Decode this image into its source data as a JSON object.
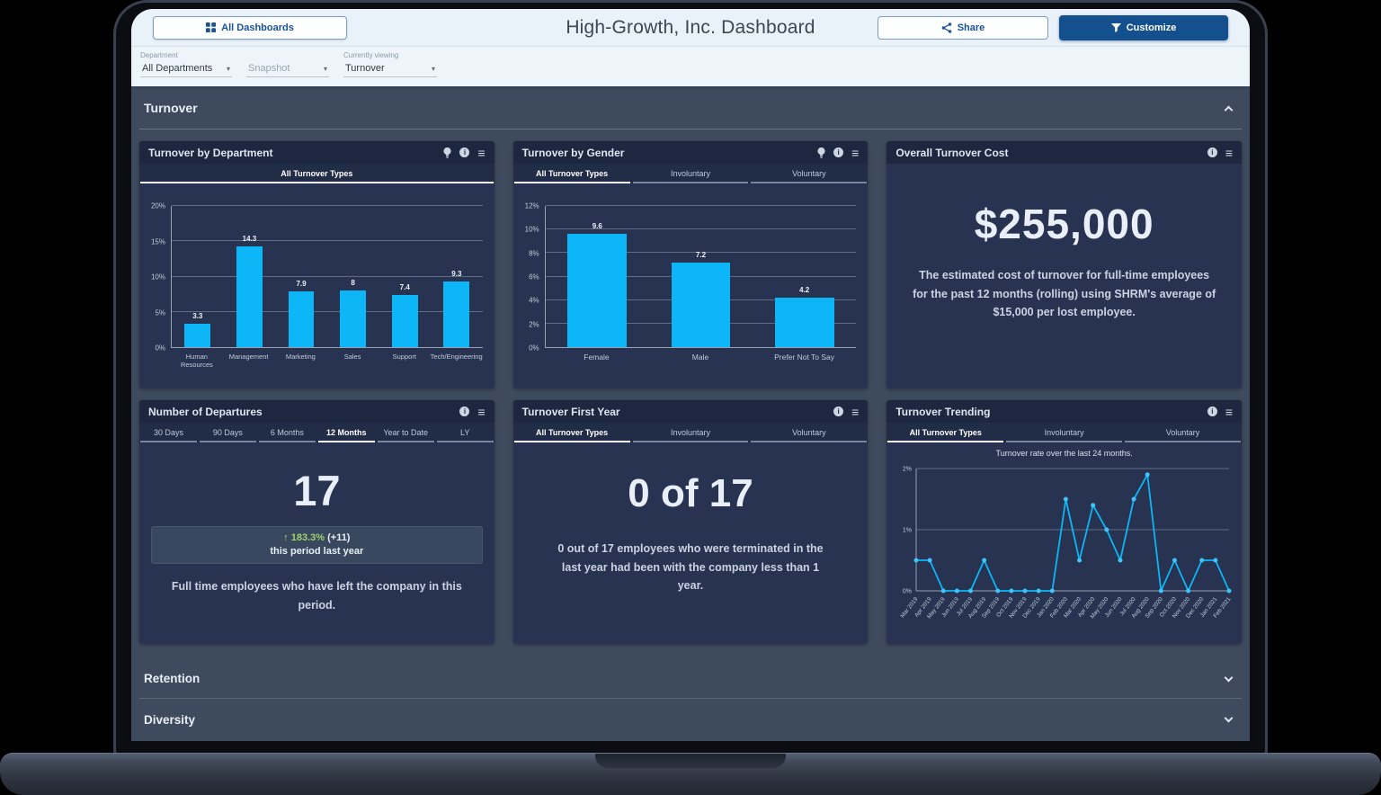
{
  "window": {
    "title": "High-Growth, Inc. Dashboard"
  },
  "topbar": {
    "all_dashboards_label": "All Dashboards",
    "share_label": "Share",
    "customize_label": "Customize"
  },
  "filters": {
    "department_label": "Department",
    "department_value": "All Departments",
    "snapshot_value": "Snapshot",
    "viewing_label": "Currently viewing",
    "viewing_value": "Turnover"
  },
  "sections": {
    "turnover_label": "Turnover",
    "retention_label": "Retention",
    "diversity_label": "Diversity"
  },
  "cards": {
    "by_department": {
      "title": "Turnover by Department",
      "tabs": [
        "All Turnover Types"
      ]
    },
    "by_gender": {
      "title": "Turnover by Gender",
      "tabs": [
        "All Turnover Types",
        "Involuntary",
        "Voluntary"
      ]
    },
    "cost": {
      "title": "Overall Turnover Cost",
      "value": "$255,000",
      "caption": "The estimated cost of turnover for full-time employees for the past 12 months (rolling) using SHRM's average of $15,000 per lost employee."
    },
    "departures": {
      "title": "Number of Departures",
      "tabs": [
        "30 Days",
        "90 Days",
        "6 Months",
        "12 Months",
        "Year to Date",
        "LY"
      ],
      "active_tab": "12 Months",
      "value": "17",
      "delta_arrow": "↑",
      "delta_pct": "183.3%",
      "delta_count": "(+11)",
      "delta_caption": "this period last year",
      "caption": "Full time employees who have left the company in this period."
    },
    "first_year": {
      "title": "Turnover First Year",
      "tabs": [
        "All Turnover Types",
        "Involuntary",
        "Voluntary"
      ],
      "value": "0 of 17",
      "caption": "0 out of 17 employees who were terminated in the last year had been with the company less than 1 year."
    },
    "trending": {
      "title": "Turnover Trending",
      "tabs": [
        "All Turnover Types",
        "Involuntary",
        "Voluntary"
      ],
      "subtitle": "Turnover rate over the last 24 months."
    }
  },
  "icons": {
    "menu_glyph": "≡",
    "caret_glyph": "▾",
    "info_glyph": "i"
  },
  "colors": {
    "accent": "#0db6f7",
    "positive": "#9ed36a",
    "customize_bg": "#15508e",
    "card_bg": "#273350",
    "card_header_bg": "#1d2840",
    "page_bg": "#3e4b5e"
  },
  "chart_data": [
    {
      "type": "bar",
      "title": "Turnover by Department",
      "active_tab": "All Turnover Types",
      "categories": [
        "Human Resources",
        "Management",
        "Marketing",
        "Sales",
        "Support",
        "Tech/Engineering"
      ],
      "values": [
        3.3,
        14.3,
        7.9,
        8,
        7.4,
        9.3
      ],
      "labels": [
        "3.3",
        "14.3",
        "7.9",
        "8",
        "7.4",
        "9.3"
      ],
      "ylim": [
        0,
        20
      ],
      "yticks": [
        0,
        5,
        10,
        15,
        20
      ],
      "ytick_suffix": "%",
      "bar_pct": 50,
      "color": "#0db6f7"
    },
    {
      "type": "bar",
      "title": "Turnover by Gender",
      "active_tab": "All Turnover Types",
      "categories": [
        "Female",
        "Male",
        "Prefer Not To Say"
      ],
      "values": [
        9.6,
        7.2,
        4.2
      ],
      "labels": [
        "9.6",
        "7.2",
        "4.2"
      ],
      "ylim": [
        0,
        12
      ],
      "yticks": [
        0,
        2,
        4,
        6,
        8,
        10,
        12
      ],
      "ytick_suffix": "%",
      "bar_pct": 57,
      "color": "#0db6f7"
    },
    {
      "type": "line",
      "title": "Turnover Trending",
      "subtitle": "Turnover rate over the last 24 months.",
      "x": [
        "Mar 2019",
        "Apr 2019",
        "May 2019",
        "Jun 2019",
        "Jul 2019",
        "Aug 2019",
        "Sep 2019",
        "Oct 2019",
        "Nov 2019",
        "Dec 2019",
        "Jan 2020",
        "Feb 2020",
        "Mar 2020",
        "Apr 2020",
        "May 2020",
        "Jun 2020",
        "Jul 2020",
        "Aug 2020",
        "Sep 2020",
        "Oct 2020",
        "Nov 2020",
        "Dec 2020",
        "Jan 2021",
        "Feb 2021"
      ],
      "values": [
        0.5,
        0.5,
        0,
        0,
        0,
        0.5,
        0,
        0,
        0,
        0,
        0,
        1.5,
        0.5,
        1.4,
        1.0,
        0.5,
        1.5,
        1.9,
        0,
        0.5,
        0,
        0.5,
        0.5,
        0
      ],
      "ylim": [
        0,
        2
      ],
      "yticks": [
        0,
        1,
        2
      ],
      "ytick_suffix": "%",
      "color": "#0db6f7"
    }
  ]
}
